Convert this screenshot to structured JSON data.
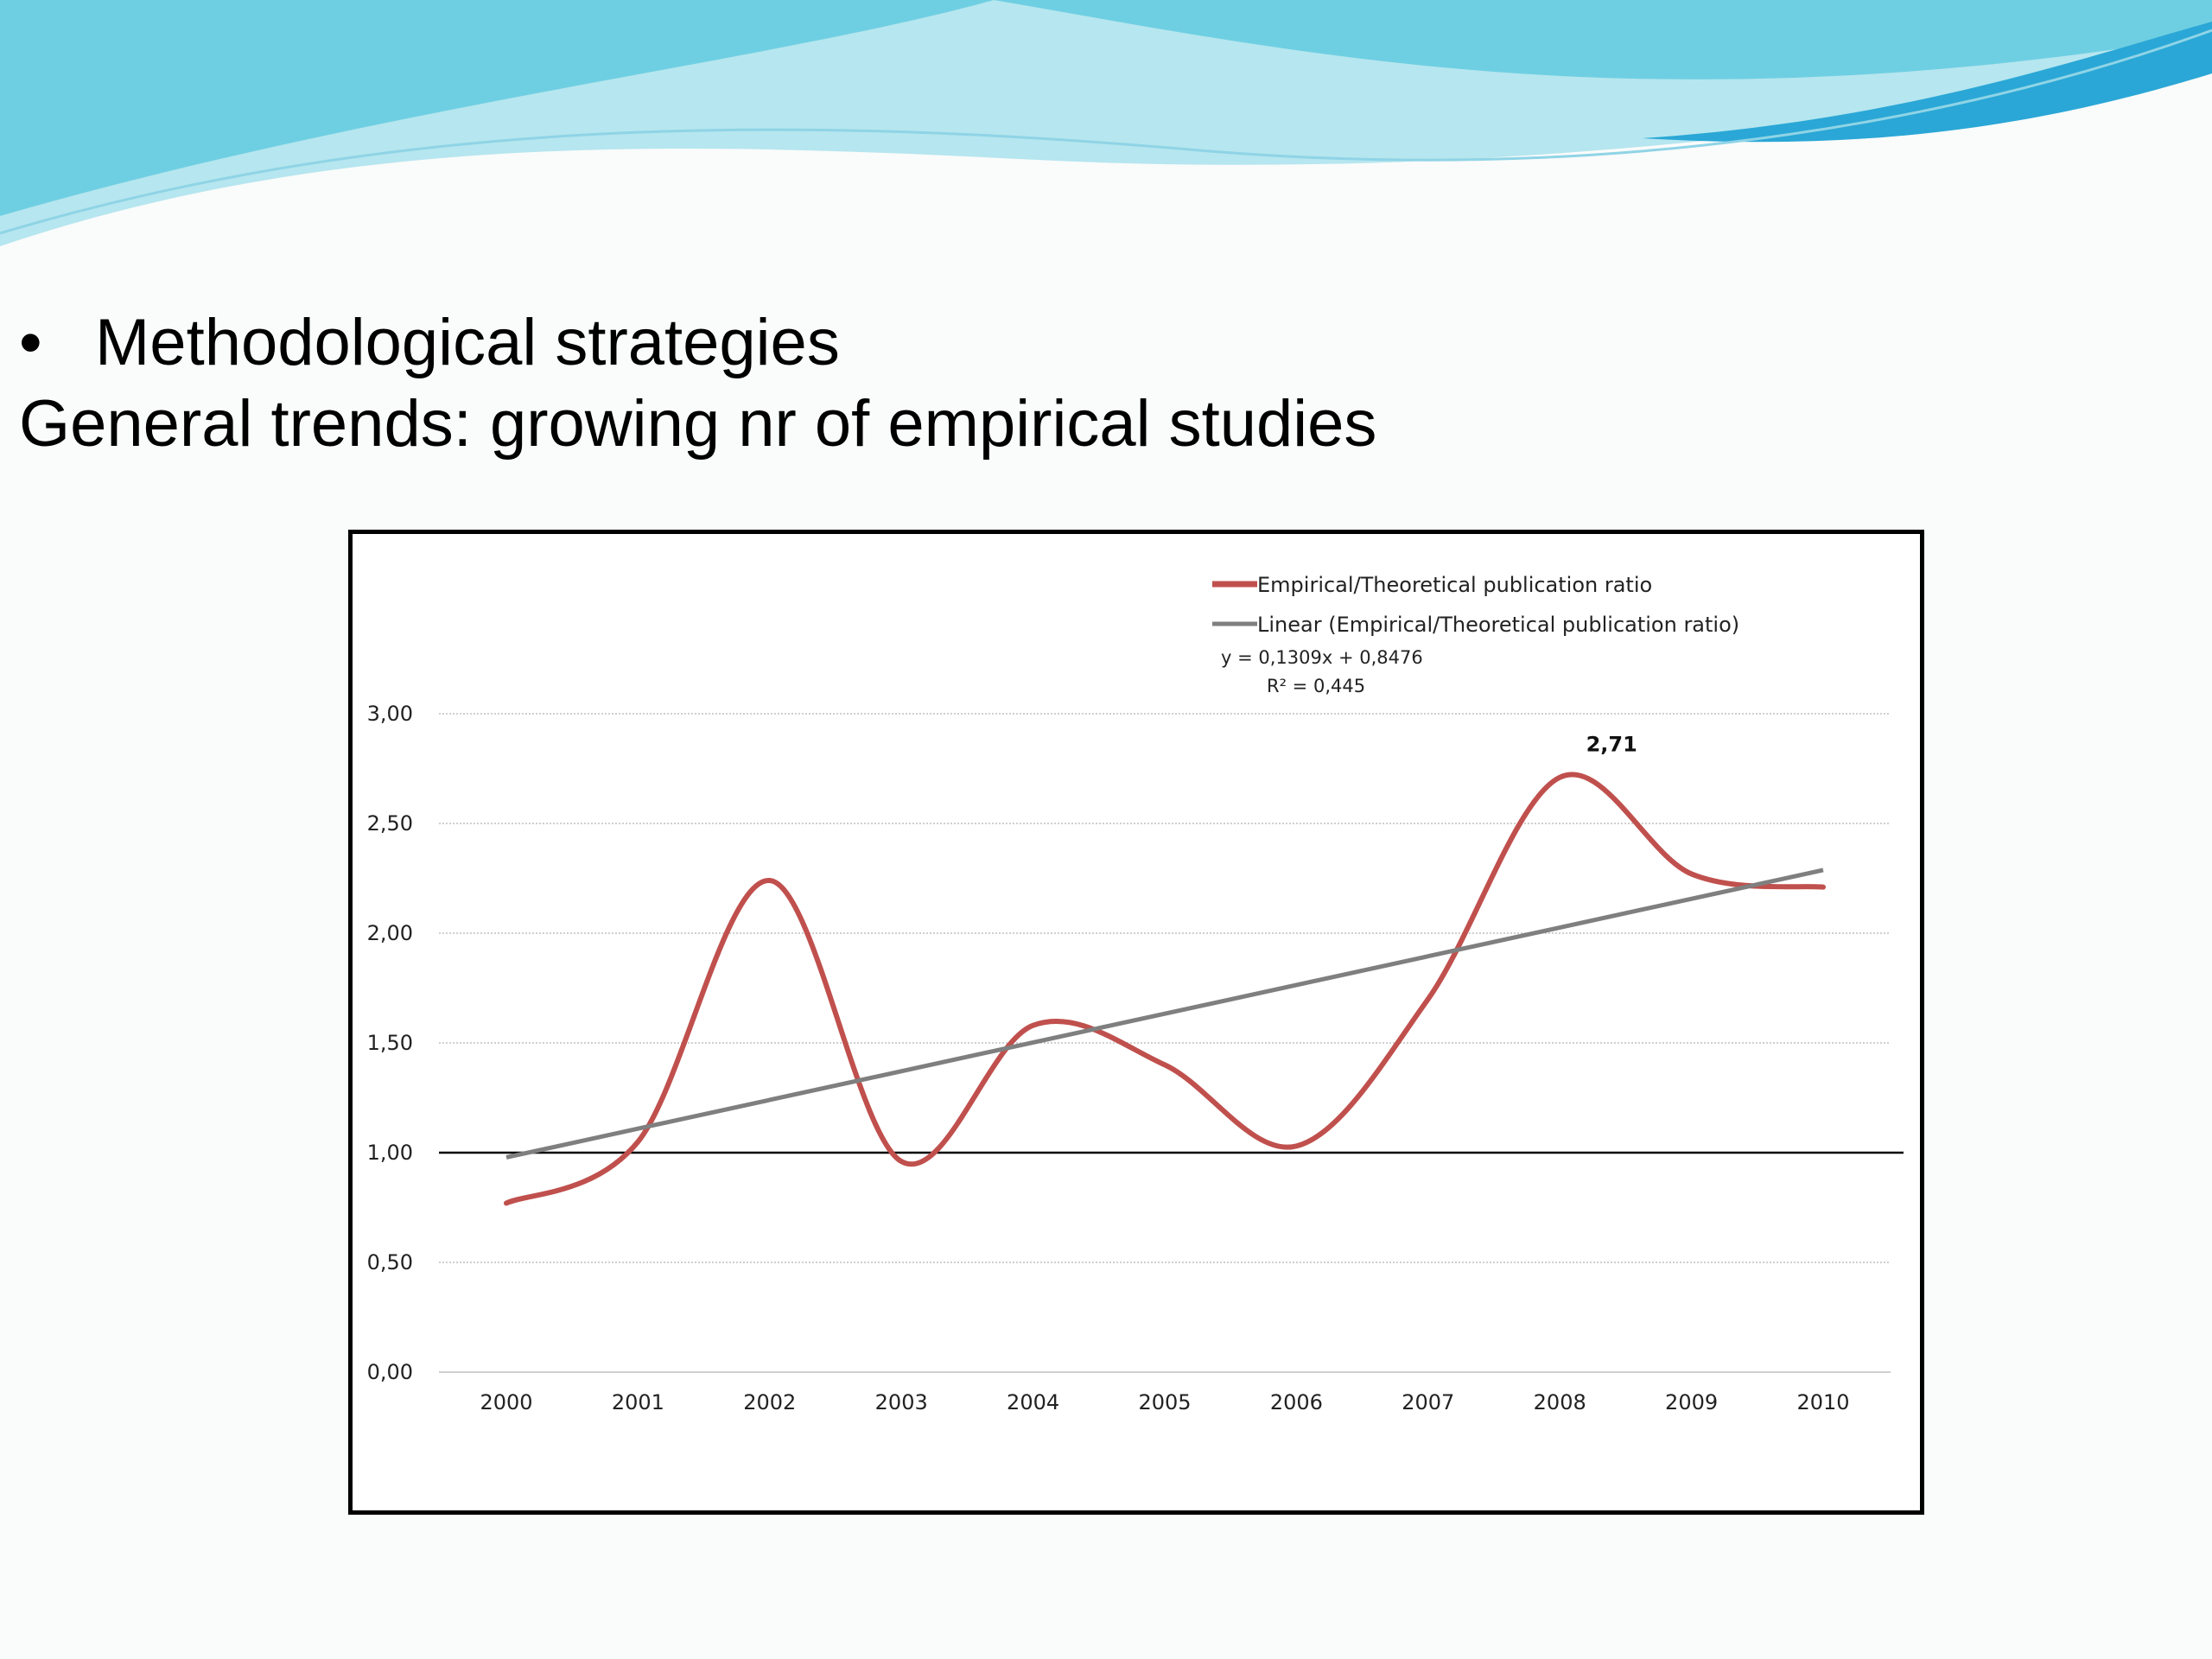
{
  "slide": {
    "bullet_symbol": "•",
    "bullet_text": "Methodological strategies",
    "subtitle": "General trends: growing nr of empirical studies"
  },
  "colors": {
    "series": "#c0504d",
    "trend": "#7f7f7f",
    "reference": "#000000",
    "gridline": "#bfbfbf",
    "wave_light": "#b6e6ef",
    "wave_mid": "#6fcfe2",
    "wave_dark": "#2aa7d6"
  },
  "chart_data": {
    "type": "line",
    "title": "",
    "xlabel": "",
    "ylabel": "",
    "categories": [
      "2000",
      "2001",
      "2002",
      "2003",
      "2004",
      "2005",
      "2006",
      "2007",
      "2008",
      "2009",
      "2010"
    ],
    "series": [
      {
        "name": "Empirical/Theoretical publication ratio",
        "values": [
          0.77,
          1.05,
          2.24,
          0.96,
          1.58,
          1.4,
          1.03,
          1.7,
          2.71,
          2.27,
          2.21
        ],
        "smooth": true
      }
    ],
    "trendline": {
      "name": "Linear (Empirical/Theoretical publication ratio)",
      "slope": 0.1309,
      "intercept": 0.8476,
      "equation": "y = 0,1309x + 0,8476",
      "r_squared": "R² = 0,445"
    },
    "reference_line": 1.0,
    "ylim": [
      0,
      3
    ],
    "yticks": [
      "0,00",
      "0,50",
      "1,00",
      "1,50",
      "2,00",
      "2,50",
      "3,00"
    ],
    "data_labels": [
      {
        "category": "2008",
        "text": "2,71"
      }
    ],
    "grid": true,
    "legend_position": "top-right"
  }
}
